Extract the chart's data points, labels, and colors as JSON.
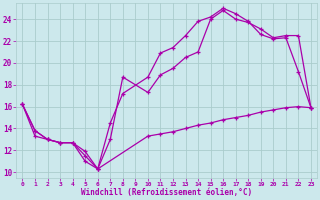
{
  "xlabel": "Windchill (Refroidissement éolien,°C)",
  "background_color": "#cce8ec",
  "line_color": "#aa00aa",
  "grid_color": "#aacccc",
  "xlim": [
    -0.5,
    23.5
  ],
  "ylim": [
    9.5,
    25.5
  ],
  "xticks": [
    0,
    1,
    2,
    3,
    4,
    5,
    6,
    7,
    8,
    9,
    10,
    11,
    12,
    13,
    14,
    15,
    16,
    17,
    18,
    19,
    20,
    21,
    22,
    23
  ],
  "yticks": [
    10,
    12,
    14,
    16,
    18,
    20,
    22,
    24
  ],
  "series1_x": [
    0,
    1,
    2,
    3,
    4,
    5,
    6,
    7,
    8,
    10,
    11,
    12,
    13,
    14,
    15,
    16,
    17,
    18,
    19,
    20,
    21,
    22,
    23
  ],
  "series1_y": [
    16.2,
    13.8,
    13.0,
    12.7,
    12.7,
    11.0,
    10.3,
    14.5,
    17.2,
    18.7,
    20.9,
    21.4,
    22.5,
    23.8,
    24.2,
    25.0,
    24.5,
    23.8,
    22.6,
    22.2,
    22.3,
    19.2,
    15.9
  ],
  "series2_x": [
    0,
    1,
    2,
    3,
    4,
    5,
    6,
    7,
    8,
    10,
    11,
    12,
    13,
    14,
    15,
    16,
    17,
    18,
    19,
    20,
    21,
    22,
    23
  ],
  "series2_y": [
    16.2,
    13.8,
    13.0,
    12.7,
    12.7,
    11.5,
    10.3,
    13.0,
    18.7,
    17.3,
    18.9,
    19.5,
    20.5,
    21.0,
    24.0,
    24.8,
    24.0,
    23.7,
    23.1,
    22.3,
    22.5,
    22.5,
    15.9
  ],
  "series3_x": [
    0,
    1,
    2,
    3,
    4,
    5,
    6,
    10,
    11,
    12,
    13,
    14,
    15,
    16,
    17,
    18,
    19,
    20,
    21,
    22,
    23
  ],
  "series3_y": [
    16.2,
    13.3,
    13.0,
    12.7,
    12.7,
    11.9,
    10.3,
    13.3,
    13.5,
    13.7,
    14.0,
    14.3,
    14.5,
    14.8,
    15.0,
    15.2,
    15.5,
    15.7,
    15.9,
    16.0,
    15.9
  ]
}
